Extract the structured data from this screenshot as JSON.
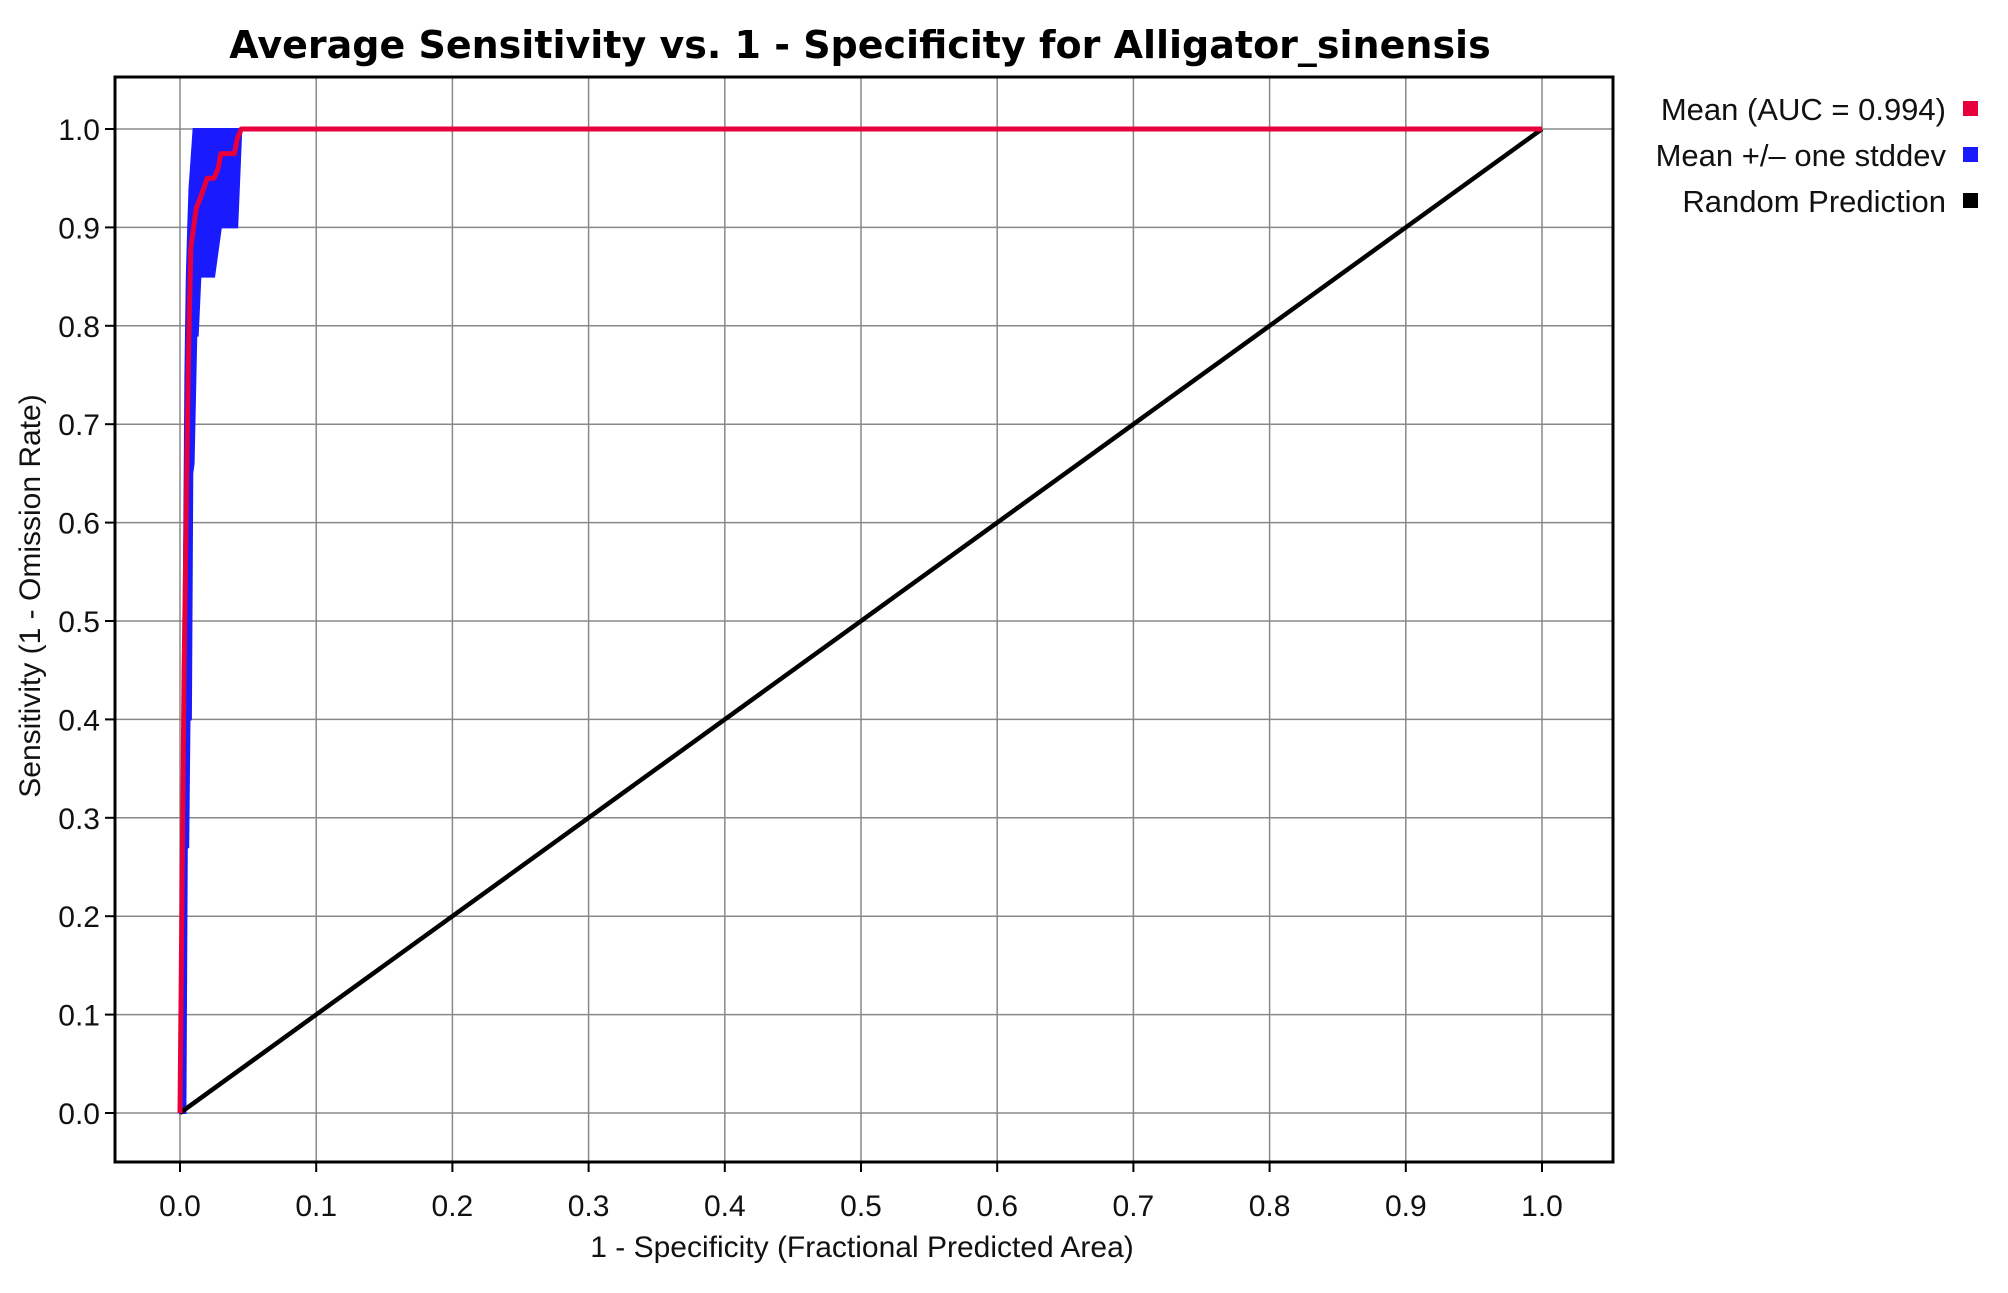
{
  "chart_data": {
    "type": "line",
    "title": "Average Sensitivity vs. 1 - Specificity for Alligator_sinensis",
    "xlabel": "1 - Specificity (Fractional Predicted Area)",
    "ylabel": "Sensitivity (1 - Omission Rate)",
    "xlim": [
      0,
      1
    ],
    "ylim": [
      0,
      1
    ],
    "x_ticks": [
      "0.0",
      "0.1",
      "0.2",
      "0.3",
      "0.4",
      "0.5",
      "0.6",
      "0.7",
      "0.8",
      "0.9",
      "1.0"
    ],
    "y_ticks": [
      "0.0",
      "0.1",
      "0.2",
      "0.3",
      "0.4",
      "0.5",
      "0.6",
      "0.7",
      "0.8",
      "0.9",
      "1.0"
    ],
    "grid": true,
    "legend_position": "right",
    "colors": {
      "mean": "#e8003c",
      "stddev": "#1a1aff",
      "random": "#000000",
      "frame": "#000000",
      "grid": "#888888"
    },
    "series": [
      {
        "name": "Mean (AUC = 0.994)",
        "color": "#e8003c",
        "x": [
          0.0,
          0.001,
          0.002,
          0.003,
          0.004,
          0.005,
          0.006,
          0.007,
          0.008,
          0.01,
          0.012,
          0.015,
          0.02,
          0.025,
          0.028,
          0.03,
          0.035,
          0.04,
          0.042,
          0.045,
          0.05,
          1.0
        ],
        "y": [
          0.0,
          0.15,
          0.3,
          0.45,
          0.55,
          0.65,
          0.75,
          0.82,
          0.88,
          0.9,
          0.92,
          0.93,
          0.95,
          0.95,
          0.96,
          0.975,
          0.975,
          0.975,
          0.99,
          1.0,
          1.0,
          1.0
        ]
      },
      {
        "name": "Mean +/– one stddev",
        "color": "#1a1aff",
        "upper": {
          "x": [
            0.0,
            0.002,
            0.003,
            0.004,
            0.005,
            0.006,
            0.007,
            0.008,
            0.01,
            1.0
          ],
          "y": [
            0.0,
            0.3,
            0.57,
            0.75,
            0.85,
            0.9,
            0.94,
            0.96,
            1.0,
            1.0
          ]
        },
        "lower": {
          "x": [
            0.0,
            0.004,
            0.005,
            0.006,
            0.007,
            0.008,
            0.009,
            0.01,
            0.012,
            0.013,
            0.015,
            0.02,
            0.025,
            0.03,
            0.035,
            0.042,
            0.045,
            1.0
          ],
          "y": [
            0.0,
            0.0,
            0.27,
            0.27,
            0.4,
            0.4,
            0.65,
            0.66,
            0.79,
            0.79,
            0.85,
            0.85,
            0.85,
            0.9,
            0.9,
            0.9,
            1.0,
            1.0
          ]
        }
      },
      {
        "name": "Random Prediction",
        "color": "#000000",
        "x": [
          0.0,
          1.0
        ],
        "y": [
          0.0,
          1.0
        ]
      }
    ]
  }
}
